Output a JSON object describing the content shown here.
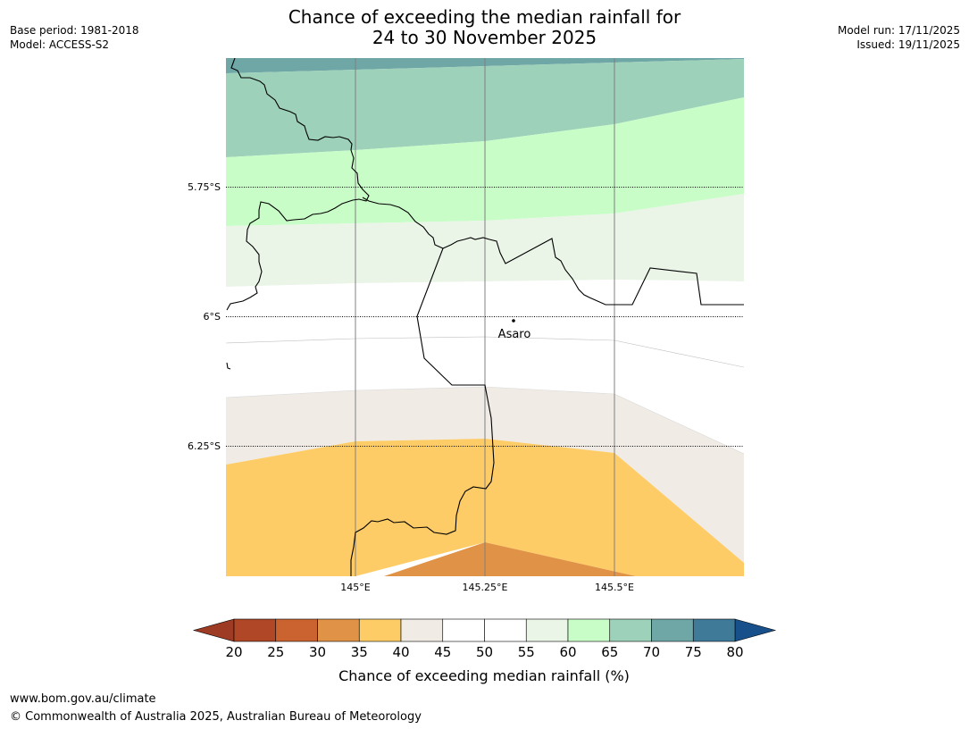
{
  "header": {
    "title_line1": "Chance of exceeding the median rainfall for",
    "title_line2": "24 to 30 November 2025",
    "base_period": "Base period: 1981-2018",
    "model": "Model: ACCESS-S2",
    "model_run": "Model run: 17/11/2025",
    "issued": "Issued: 19/11/2025"
  },
  "map": {
    "lat_labels": [
      "5.75°S",
      "6°S",
      "6.25°S"
    ],
    "lon_labels": [
      "145°E",
      "145.25°E",
      "145.5°E"
    ],
    "place": "Asaro"
  },
  "colorbar": {
    "label": "Chance of exceeding median rainfall (%)",
    "ticks": [
      "20",
      "25",
      "30",
      "35",
      "40",
      "45",
      "50",
      "55",
      "60",
      "65",
      "70",
      "75",
      "80"
    ],
    "under_color": "#9e3b24",
    "over_color": "#17508a",
    "colors": [
      "#b04726",
      "#cb6331",
      "#e09246",
      "#fecc66",
      "#f0ebe4",
      "#ffffff",
      "#ffffff",
      "#eaf5e8",
      "#c9fdc8",
      "#9dd1ba",
      "#6fa6a6",
      "#3f7a99"
    ]
  },
  "footer": {
    "url": "www.bom.gov.au/climate",
    "copyright": "© Commonwealth of Australia 2025, Australian Bureau of Meteorology"
  }
}
